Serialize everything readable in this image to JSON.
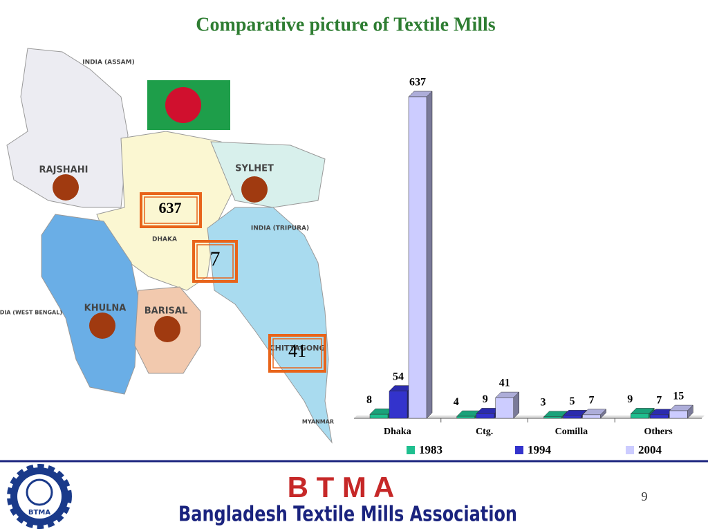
{
  "chart_data": {
    "type": "bar3d",
    "title": "Comparative picture of Textile Mills",
    "categories": [
      "Dhaka",
      "Ctg.",
      "Comilla",
      "Others"
    ],
    "series": [
      {
        "name": "1983",
        "color": "#1fbf8f",
        "values": [
          8,
          4,
          3,
          9
        ]
      },
      {
        "name": "1994",
        "color": "#3333cc",
        "values": [
          54,
          9,
          5,
          7
        ]
      },
      {
        "name": "2004",
        "color": "#ccccff",
        "values": [
          637,
          41,
          7,
          15
        ]
      }
    ]
  },
  "map": {
    "regions": [
      "RAJSHAHI",
      "SYLHET",
      "KHULNA",
      "BARISAL",
      "CHITTAGONG",
      "INDIA (ASSAM)",
      "INDIA (TRIPURA)",
      "INDIA (WEST BENGAL)",
      "DHAKA",
      "MYANMAR"
    ],
    "callouts": [
      "637",
      "7",
      "41"
    ]
  },
  "footer": {
    "acronym": "B T M A",
    "name": "Bangladesh Textile Mills Association",
    "logo": "BTMA",
    "page": "9"
  }
}
